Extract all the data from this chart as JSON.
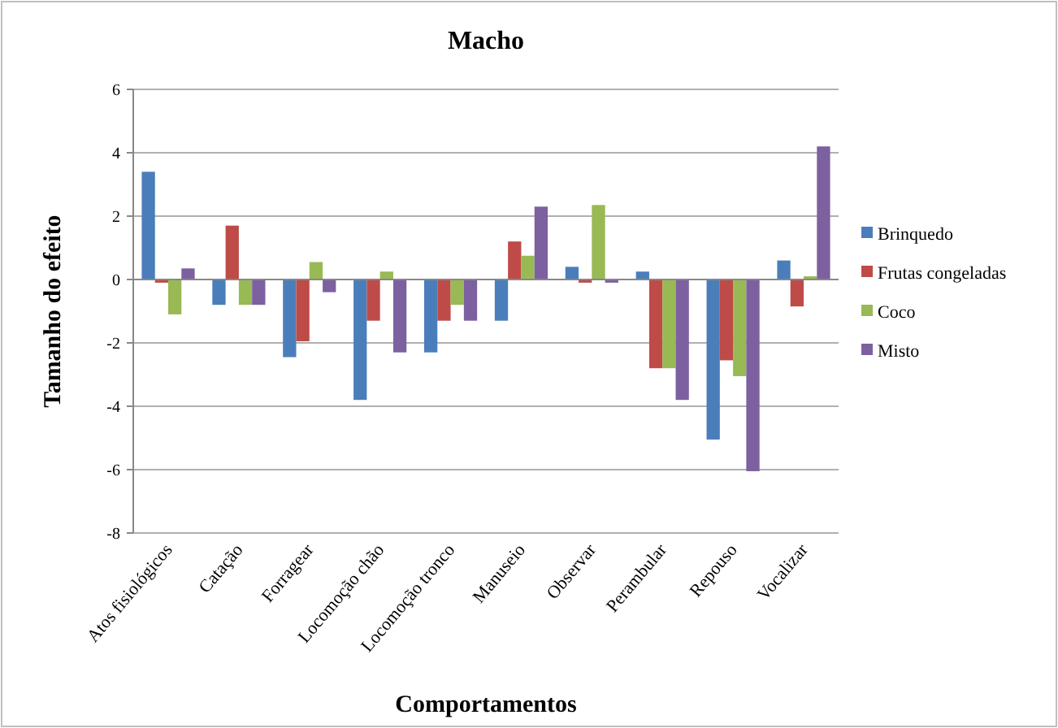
{
  "chart_data": {
    "type": "bar",
    "title": "Macho",
    "xlabel": "Comportamentos",
    "ylabel": "Tamanho do efeito",
    "categories": [
      "Atos fisiológicos",
      "Catação",
      "Forragear",
      "Locomoção chão",
      "Locomoção tronco",
      "Manuseio",
      "Observar",
      "Perambular",
      "Repouso",
      "Vocalizar"
    ],
    "series": [
      {
        "name": "Brinquedo",
        "color": "#4a7ebb",
        "values": [
          3.4,
          -0.8,
          -2.45,
          -3.8,
          -2.3,
          -1.3,
          0.4,
          0.25,
          -5.05,
          0.6
        ]
      },
      {
        "name": "Frutas congeladas",
        "color": "#be4b48",
        "values": [
          -0.1,
          1.7,
          -1.95,
          -1.3,
          -1.3,
          1.2,
          -0.1,
          -2.8,
          -2.55,
          -0.85
        ]
      },
      {
        "name": "Coco",
        "color": "#98b954",
        "values": [
          -1.1,
          -0.8,
          0.55,
          0.25,
          -0.8,
          0.75,
          2.35,
          -2.8,
          -3.05,
          0.1
        ]
      },
      {
        "name": "Misto",
        "color": "#7d60a0",
        "values": [
          0.35,
          -0.8,
          -0.4,
          -2.3,
          -1.3,
          2.3,
          -0.1,
          -3.8,
          -6.05,
          4.2
        ]
      }
    ],
    "ylim": [
      -8,
      6
    ],
    "yticks": [
      -8,
      -6,
      -4,
      -2,
      0,
      2,
      4,
      6
    ],
    "grid": "y",
    "legend": "right"
  }
}
